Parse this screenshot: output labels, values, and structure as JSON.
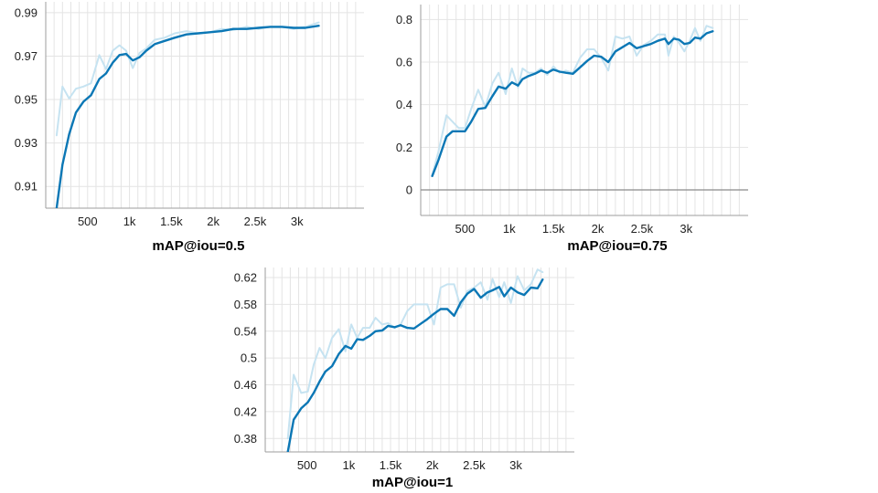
{
  "colors": {
    "smoothed": "#0b77b5",
    "raw": "#c6e3f1"
  },
  "chart_data": [
    {
      "type": "line",
      "title": "mAP@iou=0.5",
      "xlabel": "",
      "ylabel": "",
      "xlim": [
        0,
        3800
      ],
      "ylim": [
        0.9,
        0.995
      ],
      "xticks": [
        500,
        1000,
        1500,
        2000,
        2500,
        3000
      ],
      "xticklabels": [
        "500",
        "1k",
        "1.5k",
        "2k",
        "2.5k",
        "3k"
      ],
      "yticks": [
        0.91,
        0.93,
        0.95,
        0.97,
        0.99
      ],
      "yticklabels": [
        "0.91",
        "0.93",
        "0.95",
        "0.97",
        "0.99"
      ],
      "grid": true,
      "series": [
        {
          "x": [
            130,
            200,
            280,
            360,
            450,
            540,
            640,
            720,
            800,
            880,
            960,
            1040,
            1120,
            1200,
            1300,
            1420,
            1540,
            1680,
            1820,
            1960,
            2100,
            2240,
            2400,
            2540,
            2680,
            2820,
            2960,
            3100,
            3260
          ],
          "y": [
            0.9335,
            0.956,
            0.9505,
            0.955,
            0.956,
            0.9575,
            0.9705,
            0.964,
            0.9725,
            0.975,
            0.9725,
            0.9645,
            0.9715,
            0.9735,
            0.9775,
            0.9785,
            0.9805,
            0.9815,
            0.9805,
            0.981,
            0.9825,
            0.982,
            0.9835,
            0.9825,
            0.9835,
            0.9835,
            0.9825,
            0.9835,
            0.9855
          ]
        },
        {
          "x": [
            130,
            200,
            280,
            360,
            450,
            540,
            640,
            720,
            800,
            880,
            960,
            1040,
            1120,
            1200,
            1300,
            1420,
            1540,
            1680,
            1820,
            1960,
            2100,
            2240,
            2400,
            2540,
            2680,
            2820,
            2960,
            3100,
            3260
          ],
          "y": [
            0.9,
            0.92,
            0.934,
            0.944,
            0.949,
            0.952,
            0.9595,
            0.962,
            0.967,
            0.9705,
            0.971,
            0.968,
            0.9695,
            0.9725,
            0.9755,
            0.977,
            0.9785,
            0.98,
            0.9805,
            0.981,
            0.9815,
            0.9825,
            0.9825,
            0.983,
            0.9835,
            0.9835,
            0.983,
            0.983,
            0.984
          ]
        }
      ]
    },
    {
      "type": "line",
      "title": "mAP@iou=0.75",
      "xlabel": "",
      "ylabel": "",
      "xlim": [
        0,
        3700
      ],
      "ylim": [
        -0.12,
        0.87
      ],
      "xticks": [
        500,
        1000,
        1500,
        2000,
        2500,
        3000
      ],
      "xticklabels": [
        "500",
        "1k",
        "1.5k",
        "2k",
        "2.5k",
        "3k"
      ],
      "yticks": [
        0,
        0.2,
        0.4,
        0.6,
        0.8
      ],
      "yticklabels": [
        "0",
        "0.2",
        "0.4",
        "0.6",
        "0.8"
      ],
      "grid": true,
      "series": [
        {
          "x": [
            130,
            200,
            290,
            360,
            430,
            500,
            570,
            650,
            730,
            810,
            880,
            960,
            1030,
            1100,
            1150,
            1220,
            1290,
            1360,
            1430,
            1500,
            1570,
            1640,
            1720,
            1800,
            1880,
            1960,
            2040,
            2120,
            2200,
            2280,
            2360,
            2440,
            2520,
            2600,
            2680,
            2760,
            2800,
            2860,
            2920,
            2980,
            3040,
            3100,
            3160,
            3230,
            3300
          ],
          "y": [
            0.07,
            0.18,
            0.35,
            0.32,
            0.29,
            0.29,
            0.38,
            0.47,
            0.39,
            0.5,
            0.55,
            0.45,
            0.57,
            0.48,
            0.57,
            0.55,
            0.55,
            0.57,
            0.54,
            0.58,
            0.55,
            0.56,
            0.55,
            0.62,
            0.66,
            0.66,
            0.62,
            0.56,
            0.72,
            0.71,
            0.72,
            0.63,
            0.68,
            0.7,
            0.73,
            0.73,
            0.63,
            0.72,
            0.69,
            0.65,
            0.7,
            0.76,
            0.7,
            0.77,
            0.76
          ]
        },
        {
          "x": [
            130,
            200,
            290,
            360,
            430,
            500,
            570,
            650,
            730,
            810,
            880,
            960,
            1030,
            1100,
            1150,
            1220,
            1290,
            1360,
            1430,
            1500,
            1570,
            1640,
            1720,
            1800,
            1880,
            1960,
            2040,
            2120,
            2200,
            2280,
            2360,
            2440,
            2520,
            2600,
            2680,
            2760,
            2800,
            2860,
            2920,
            2980,
            3040,
            3100,
            3160,
            3230,
            3300
          ],
          "y": [
            0.065,
            0.14,
            0.25,
            0.275,
            0.275,
            0.275,
            0.32,
            0.38,
            0.385,
            0.44,
            0.485,
            0.475,
            0.505,
            0.49,
            0.52,
            0.535,
            0.545,
            0.56,
            0.55,
            0.565,
            0.555,
            0.55,
            0.545,
            0.575,
            0.605,
            0.63,
            0.625,
            0.6,
            0.65,
            0.67,
            0.69,
            0.665,
            0.675,
            0.685,
            0.7,
            0.71,
            0.685,
            0.71,
            0.705,
            0.685,
            0.69,
            0.715,
            0.71,
            0.735,
            0.745
          ]
        }
      ]
    },
    {
      "type": "line",
      "title": "mAP@iou=1",
      "xlabel": "",
      "ylabel": "",
      "xlim": [
        0,
        3700
      ],
      "ylim": [
        0.36,
        0.635
      ],
      "xticks": [
        500,
        1000,
        1500,
        2000,
        2500,
        3000
      ],
      "xticklabels": [
        "500",
        "1k",
        "1.5k",
        "2k",
        "2.5k",
        "3k"
      ],
      "yticks": [
        0.38,
        0.42,
        0.46,
        0.5,
        0.54,
        0.58,
        0.62
      ],
      "yticklabels": [
        "0.38",
        "0.42",
        "0.46",
        "0.5",
        "0.54",
        "0.58",
        "0.62"
      ],
      "grid": true,
      "series": [
        {
          "x": [
            270,
            340,
            430,
            510,
            580,
            650,
            720,
            800,
            880,
            960,
            1030,
            1100,
            1170,
            1250,
            1320,
            1400,
            1470,
            1550,
            1620,
            1700,
            1780,
            1860,
            1940,
            2020,
            2100,
            2180,
            2260,
            2340,
            2420,
            2500,
            2580,
            2660,
            2720,
            2800,
            2860,
            2940,
            3020,
            3100,
            3180,
            3260,
            3320
          ],
          "y": [
            0.38,
            0.475,
            0.448,
            0.45,
            0.49,
            0.515,
            0.5,
            0.53,
            0.543,
            0.51,
            0.55,
            0.53,
            0.545,
            0.545,
            0.56,
            0.55,
            0.552,
            0.545,
            0.55,
            0.57,
            0.58,
            0.58,
            0.58,
            0.55,
            0.605,
            0.61,
            0.61,
            0.575,
            0.6,
            0.605,
            0.613,
            0.587,
            0.618,
            0.591,
            0.613,
            0.582,
            0.622,
            0.601,
            0.61,
            0.632,
            0.628
          ]
        },
        {
          "x": [
            270,
            340,
            430,
            510,
            580,
            650,
            720,
            800,
            880,
            960,
            1030,
            1100,
            1170,
            1250,
            1320,
            1400,
            1470,
            1550,
            1620,
            1700,
            1780,
            1860,
            1940,
            2020,
            2100,
            2180,
            2260,
            2340,
            2420,
            2500,
            2580,
            2660,
            2720,
            2800,
            2860,
            2940,
            3020,
            3100,
            3180,
            3260,
            3320
          ],
          "y": [
            0.36,
            0.408,
            0.425,
            0.434,
            0.448,
            0.465,
            0.48,
            0.488,
            0.506,
            0.518,
            0.514,
            0.528,
            0.527,
            0.533,
            0.54,
            0.541,
            0.548,
            0.546,
            0.549,
            0.545,
            0.544,
            0.551,
            0.558,
            0.566,
            0.573,
            0.573,
            0.563,
            0.583,
            0.596,
            0.603,
            0.59,
            0.598,
            0.601,
            0.606,
            0.592,
            0.605,
            0.598,
            0.594,
            0.605,
            0.604,
            0.617
          ]
        }
      ]
    }
  ]
}
